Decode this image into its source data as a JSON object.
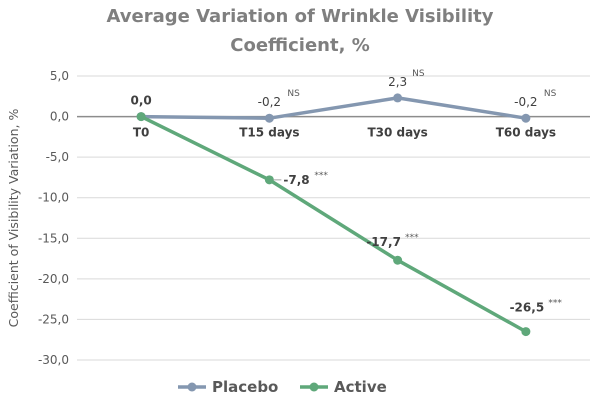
{
  "chart_data": {
    "type": "line",
    "title": [
      "Average Variation of Wrinkle Visibility",
      "Coefficient, %"
    ],
    "ylabel": "Coefficient of Visibility Variation, %",
    "xlabel": "",
    "categories": [
      "T0",
      "T15 days",
      "T30 days",
      "T60 days"
    ],
    "ylim": [
      -30,
      5
    ],
    "yticks": [
      "5,0",
      "0,0",
      "-5,0",
      "-10,0",
      "-15,0",
      "-20,0",
      "-25,0",
      "-30,0"
    ],
    "ytick_values": [
      5,
      0,
      -5,
      -10,
      -15,
      -20,
      -25,
      -30
    ],
    "grid": true,
    "legend_position": "bottom",
    "series": [
      {
        "name": "Placebo",
        "color": "#8497b0",
        "values": [
          0.0,
          -0.2,
          2.3,
          -0.2
        ],
        "labels": [
          "0,0",
          "-0,2",
          "2,3",
          "-0,2"
        ],
        "significance": [
          "",
          "NS",
          "NS",
          "NS"
        ]
      },
      {
        "name": "Active",
        "color": "#5fa87a",
        "values": [
          0.0,
          -7.8,
          -17.7,
          -26.5
        ],
        "labels": [
          "",
          "-7,8",
          "-17,7",
          "-26,5"
        ],
        "significance": [
          "",
          "***",
          "***",
          "***"
        ]
      }
    ]
  }
}
